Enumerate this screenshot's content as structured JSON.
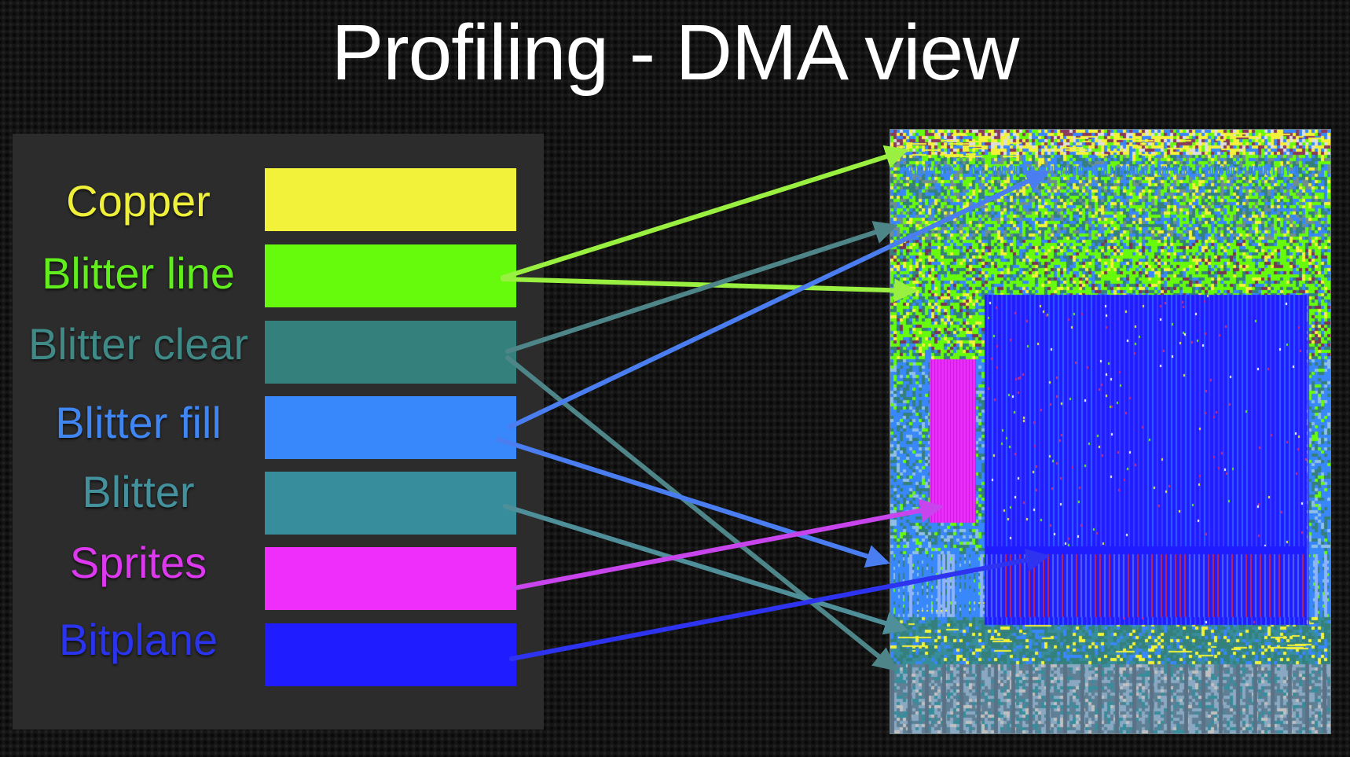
{
  "slide": {
    "title": "Profiling - DMA view"
  },
  "legend": [
    {
      "key": "copper",
      "label": "Copper",
      "color": "#f2f23a",
      "label_color": "#eef03a"
    },
    {
      "key": "blitter-line",
      "label": "Blitter line",
      "color": "#66fa0c",
      "label_color": "#62ee1c"
    },
    {
      "key": "blitter-clear",
      "label": "Blitter clear",
      "color": "#34807d",
      "label_color": "#3f8a87"
    },
    {
      "key": "blitter-fill",
      "label": "Blitter fill",
      "color": "#3887fb",
      "label_color": "#3f86f3"
    },
    {
      "key": "blitter",
      "label": "Blitter",
      "color": "#378d9b",
      "label_color": "#43919d"
    },
    {
      "key": "sprites",
      "label": "Sprites",
      "color": "#ef2efb",
      "label_color": "#dc38ee"
    },
    {
      "key": "bitplane",
      "label": "Bitplane",
      "color": "#1f1dff",
      "label_color": "#2a33ee"
    }
  ],
  "arrows": [
    {
      "from": "blitter-line",
      "to": "dma-region-blitter-line-top",
      "color": "#9af040"
    },
    {
      "from": "blitter-line",
      "to": "dma-region-blitter-line-mid",
      "color": "#9af040"
    },
    {
      "from": "blitter-clear",
      "to": "dma-region-blitter-clear-top",
      "color": "#4e8588"
    },
    {
      "from": "blitter-clear",
      "to": "dma-region-blitter-clear-bottom",
      "color": "#4e8588"
    },
    {
      "from": "blitter-fill",
      "to": "dma-region-blitter-fill-top",
      "color": "#4a7ef0"
    },
    {
      "from": "blitter-fill",
      "to": "dma-region-blitter-fill-lower",
      "color": "#4a7ef0"
    },
    {
      "from": "blitter",
      "to": "dma-region-blitter-bottom",
      "color": "#4f8f99"
    },
    {
      "from": "sprites",
      "to": "dma-region-sprites",
      "color": "#c845ee"
    },
    {
      "from": "bitplane",
      "to": "dma-region-bitplane",
      "color": "#2e33f0"
    }
  ]
}
